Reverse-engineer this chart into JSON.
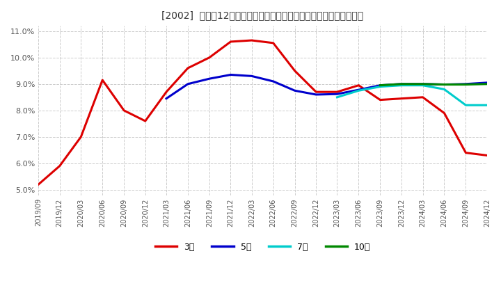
{
  "title": "[2002]  売上高12か月移動合計の対前年同期増減率の標準偏差の推移",
  "ylabel": "",
  "ylim": [
    0.048,
    0.112
  ],
  "yticks": [
    0.05,
    0.06,
    0.07,
    0.08,
    0.09,
    0.1,
    0.11
  ],
  "ytick_labels": [
    "5.0%",
    "6.0%",
    "7.0%",
    "8.0%",
    "9.0%",
    "10.0%",
    "11.0%"
  ],
  "background_color": "#ffffff",
  "grid_color": "#cccccc",
  "series": {
    "3year": {
      "color": "#dd0000",
      "label": "3年",
      "points": [
        [
          "2019/09",
          0.052
        ],
        [
          "2019/12",
          0.059
        ],
        [
          "2020/03",
          0.07
        ],
        [
          "2020/06",
          0.0915
        ],
        [
          "2020/09",
          0.08
        ],
        [
          "2020/12",
          0.076
        ],
        [
          "2021/03",
          0.087
        ],
        [
          "2021/06",
          0.096
        ],
        [
          "2021/09",
          0.1
        ],
        [
          "2021/12",
          0.106
        ],
        [
          "2022/03",
          0.1065
        ],
        [
          "2022/06",
          0.1055
        ],
        [
          "2022/09",
          0.095
        ],
        [
          "2022/12",
          0.087
        ],
        [
          "2023/03",
          0.087
        ],
        [
          "2023/06",
          0.0895
        ],
        [
          "2023/09",
          0.084
        ],
        [
          "2023/12",
          0.0845
        ],
        [
          "2024/03",
          0.085
        ],
        [
          "2024/06",
          0.079
        ],
        [
          "2024/09",
          0.064
        ],
        [
          "2024/12",
          0.063
        ]
      ]
    },
    "5year": {
      "color": "#0000cc",
      "label": "5年",
      "points": [
        [
          "2021/03",
          0.0845
        ],
        [
          "2021/06",
          0.09
        ],
        [
          "2021/09",
          0.092
        ],
        [
          "2021/12",
          0.0935
        ],
        [
          "2022/03",
          0.093
        ],
        [
          "2022/06",
          0.091
        ],
        [
          "2022/09",
          0.0875
        ],
        [
          "2022/12",
          0.086
        ],
        [
          "2023/03",
          0.0862
        ],
        [
          "2023/06",
          0.0878
        ],
        [
          "2023/09",
          0.0895
        ],
        [
          "2023/12",
          0.09
        ],
        [
          "2024/03",
          0.09
        ],
        [
          "2024/06",
          0.0898
        ],
        [
          "2024/09",
          0.09
        ],
        [
          "2024/12",
          0.0905
        ]
      ]
    },
    "7year": {
      "color": "#00cccc",
      "label": "7年",
      "points": [
        [
          "2023/03",
          0.085
        ],
        [
          "2023/06",
          0.0875
        ],
        [
          "2023/09",
          0.089
        ],
        [
          "2023/12",
          0.0895
        ],
        [
          "2024/03",
          0.0895
        ],
        [
          "2024/06",
          0.088
        ],
        [
          "2024/09",
          0.082
        ],
        [
          "2024/12",
          0.082
        ]
      ]
    },
    "10year": {
      "color": "#008800",
      "label": "10年",
      "points": [
        [
          "2023/09",
          0.0895
        ],
        [
          "2023/12",
          0.09
        ],
        [
          "2024/03",
          0.09
        ],
        [
          "2024/06",
          0.0898
        ],
        [
          "2024/09",
          0.0898
        ],
        [
          "2024/12",
          0.09
        ]
      ]
    }
  },
  "x_tick_labels": [
    "2019/09",
    "2019/12",
    "2020/03",
    "2020/06",
    "2020/09",
    "2020/12",
    "2021/03",
    "2021/06",
    "2021/09",
    "2021/12",
    "2022/03",
    "2022/06",
    "2022/09",
    "2022/12",
    "2023/03",
    "2023/06",
    "2023/09",
    "2023/12",
    "2024/03",
    "2024/06",
    "2024/09",
    "2024/12"
  ]
}
